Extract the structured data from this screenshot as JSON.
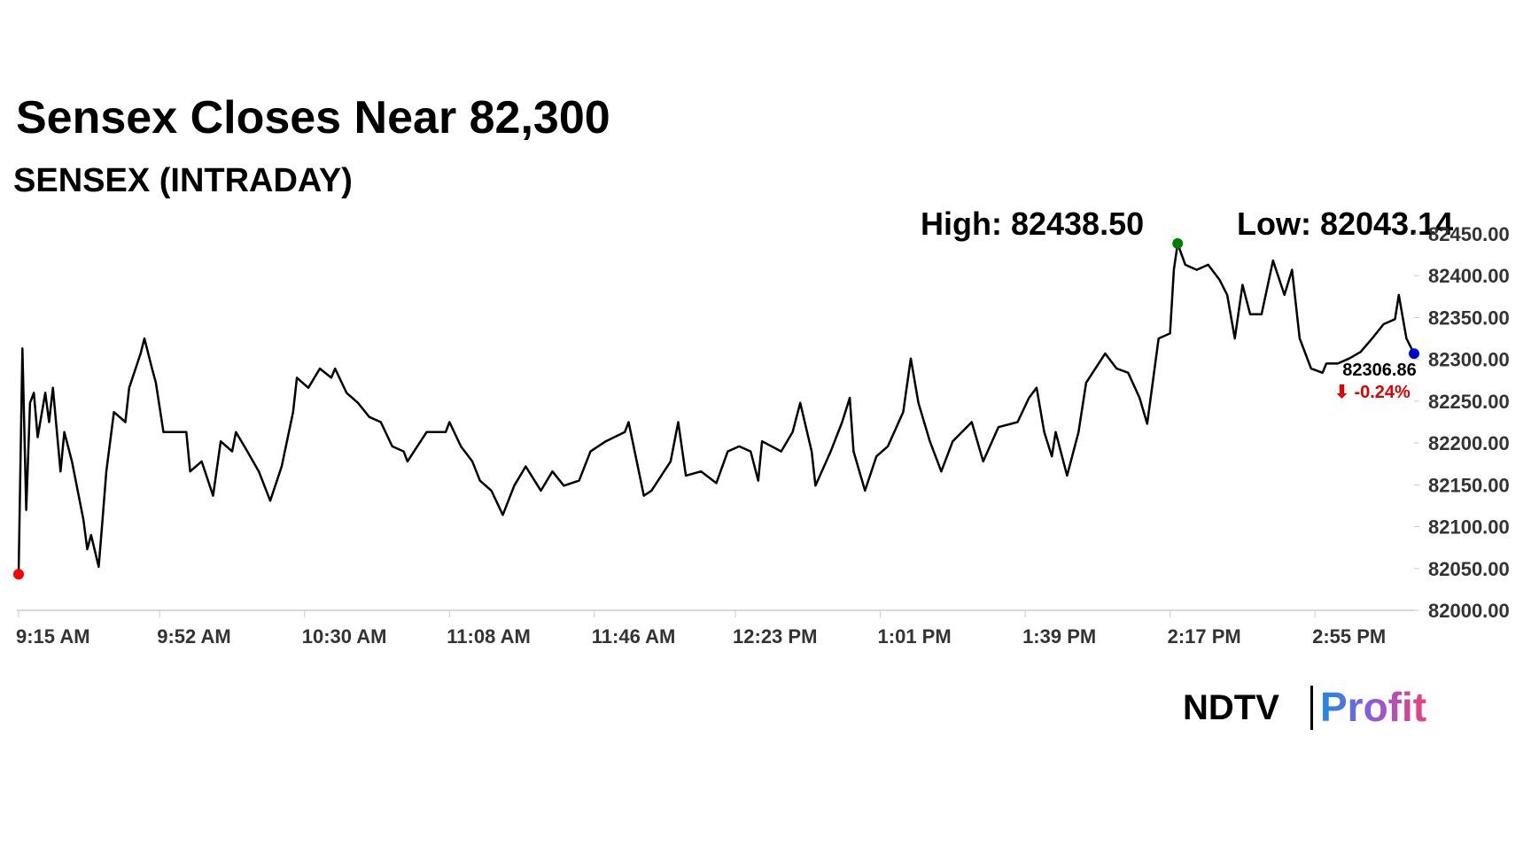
{
  "chart_data": {
    "type": "line",
    "title": "Sensex Closes Near 82,300",
    "subtitle": "SENSEX (INTRADAY)",
    "high_label": "High: 82438.50",
    "low_label": "Low: 82043.14",
    "last_label": "82306.86",
    "change_label": "⬇ -0.24%",
    "brand": "NDTV",
    "brand_product": "Profit",
    "line_color": "#000000",
    "high_color": "#008000",
    "low_color": "#ff0000",
    "last_color": "#0000cc",
    "change_color": "#e00000",
    "x": [
      555,
      556,
      557,
      558,
      559,
      560,
      562,
      563,
      564,
      566,
      567,
      569,
      572,
      573,
      574,
      576,
      577,
      578,
      580,
      583,
      584,
      587,
      588,
      590,
      591,
      593,
      596,
      599,
      600,
      603,
      606,
      608,
      611,
      612,
      615,
      618,
      621,
      624,
      627,
      628,
      631,
      634,
      637,
      638,
      641,
      644,
      647,
      650,
      653,
      656,
      657,
      662,
      667,
      668,
      671,
      674,
      676,
      679,
      682,
      685,
      688,
      692,
      695,
      698,
      702,
      705,
      709,
      714,
      715,
      719,
      721,
      726,
      728,
      730,
      734,
      738,
      741,
      744,
      747,
      749,
      750,
      755,
      758,
      760,
      763,
      764,
      768,
      771,
      773,
      774,
      777,
      780,
      783,
      787,
      789,
      791,
      794,
      797,
      800,
      805,
      808,
      812,
      817,
      820,
      822,
      824,
      826,
      827,
      830,
      833,
      835,
      840,
      843,
      846,
      849,
      851,
      854,
      857,
      858,
      859,
      861,
      864,
      867,
      870,
      872,
      874,
      876,
      878,
      881,
      884,
      887,
      889,
      891,
      894,
      897,
      898,
      901,
      904,
      907,
      910,
      913,
      916,
      917,
      919,
      921
    ],
    "values": [
      82043.14,
      82313,
      82120,
      82248,
      82260,
      82207,
      82260,
      82225,
      82266,
      82166,
      82213,
      82178,
      82108,
      82073,
      82090,
      82052,
      82108,
      82166,
      82237,
      82225,
      82266,
      82307,
      82325,
      82289,
      82272,
      82213,
      82213,
      82213,
      82166,
      82178,
      82137,
      82202,
      82190,
      82213,
      82190,
      82166,
      82131,
      82172,
      82237,
      82278,
      82266,
      82289,
      82278,
      82289,
      82260,
      82248,
      82231,
      82225,
      82196,
      82190,
      82178,
      82213,
      82213,
      82225,
      82196,
      82178,
      82155,
      82143,
      82114,
      82149,
      82172,
      82143,
      82166,
      82149,
      82155,
      82190,
      82202,
      82213,
      82225,
      82137,
      82143,
      82178,
      82225,
      82161,
      82166,
      82152,
      82190,
      82196,
      82190,
      82155,
      82202,
      82190,
      82213,
      82248,
      82190,
      82149,
      82190,
      82225,
      82254,
      82190,
      82143,
      82184,
      82196,
      82237,
      82301,
      82248,
      82202,
      82166,
      82202,
      82225,
      82178,
      82219,
      82225,
      82254,
      82266,
      82213,
      82184,
      82213,
      82161,
      82213,
      82272,
      82307,
      82289,
      82284,
      82254,
      82223,
      82325,
      82331,
      82407,
      82438.5,
      82413,
      82407,
      82413,
      82395,
      82377,
      82325,
      82389,
      82354,
      82354,
      82418,
      82377,
      82407,
      82325,
      82289,
      82284,
      82295,
      82295,
      82301,
      82309,
      82325,
      82342,
      82348,
      82377,
      82325,
      82306.86
    ],
    "xlim": [
      555,
      921
    ],
    "xticks": [
      {
        "value": 555,
        "label": "9:15 AM"
      },
      {
        "value": 592,
        "label": "9:52 AM"
      },
      {
        "value": 630,
        "label": "10:30 AM"
      },
      {
        "value": 668,
        "label": "11:08 AM"
      },
      {
        "value": 706,
        "label": "11:46 AM"
      },
      {
        "value": 743,
        "label": "12:23 PM"
      },
      {
        "value": 781,
        "label": "1:01 PM"
      },
      {
        "value": 819,
        "label": "1:39 PM"
      },
      {
        "value": 857,
        "label": "2:17 PM"
      },
      {
        "value": 895,
        "label": "2:55 PM"
      }
    ],
    "ylim": [
      82000,
      82450
    ],
    "yticks": [
      {
        "value": 82000,
        "label": "82000.00"
      },
      {
        "value": 82050,
        "label": "82050.00"
      },
      {
        "value": 82100,
        "label": "82100.00"
      },
      {
        "value": 82150,
        "label": "82150.00"
      },
      {
        "value": 82200,
        "label": "82200.00"
      },
      {
        "value": 82250,
        "label": "82250.00"
      },
      {
        "value": 82300,
        "label": "82300.00"
      },
      {
        "value": 82350,
        "label": "82350.00"
      },
      {
        "value": 82400,
        "label": "82400.00"
      },
      {
        "value": 82450,
        "label": "82450.00"
      }
    ],
    "grid": false
  }
}
